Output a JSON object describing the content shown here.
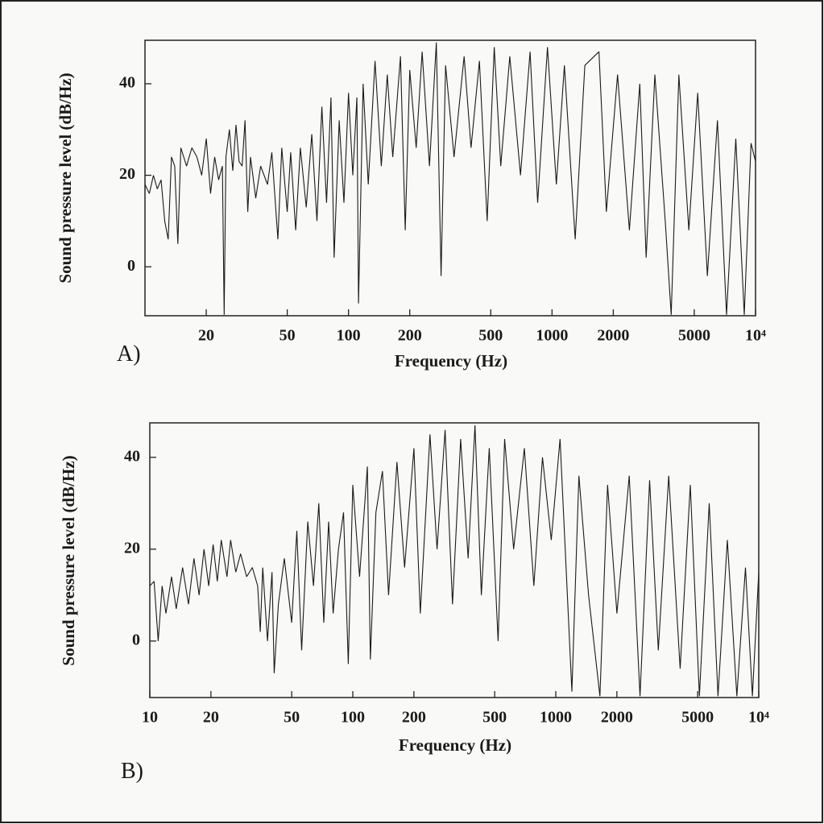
{
  "chart_data": [
    {
      "type": "line",
      "panel_label": "A)",
      "x_label": "Frequency (Hz)",
      "y_label": "Sound pressure level (dB/Hz)",
      "log_x": true,
      "color": "#1a1a1a",
      "xlim": [
        10,
        10000
      ],
      "ylim": [
        -10.7,
        49.5
      ],
      "xticks": [
        20,
        50,
        100,
        200,
        500,
        1000,
        2000,
        5000,
        {
          "value": 10000,
          "label": "10⁴"
        }
      ],
      "yticks": [
        0,
        20,
        40
      ],
      "x": [
        10,
        10.5,
        11,
        11.5,
        12,
        12.5,
        13,
        13.5,
        14,
        14.5,
        15,
        16,
        17,
        18,
        19,
        20,
        21,
        22,
        23,
        24,
        24.5,
        25,
        26,
        27,
        28,
        29,
        30,
        31,
        32,
        33,
        35,
        37,
        40,
        42,
        45,
        47,
        50,
        52,
        55,
        58,
        62,
        66,
        70,
        74,
        78,
        82,
        85,
        90,
        95,
        100,
        105,
        110,
        112,
        118,
        125,
        135,
        145,
        155,
        165,
        180,
        190,
        200,
        215,
        230,
        250,
        270,
        285,
        300,
        330,
        370,
        400,
        440,
        480,
        520,
        560,
        620,
        700,
        780,
        850,
        950,
        1050,
        1150,
        1300,
        1450,
        1700,
        1850,
        2100,
        2400,
        2700,
        2900,
        3200,
        3600,
        3850,
        4200,
        4700,
        5200,
        5800,
        6500,
        7200,
        8000,
        8800,
        9500,
        10000
      ],
      "values": [
        18,
        16,
        20,
        17,
        19,
        10,
        6,
        24,
        22,
        5,
        26,
        22,
        26,
        24,
        20,
        28,
        16,
        24,
        19,
        22,
        -10.5,
        24,
        30,
        21,
        31,
        23,
        22,
        32,
        12,
        24,
        15,
        22,
        18,
        25,
        6,
        26,
        12,
        25,
        8,
        26,
        13,
        29,
        10,
        35,
        14,
        37,
        2,
        32,
        14,
        38,
        20,
        37,
        -8,
        40,
        18,
        45,
        22,
        42,
        24,
        46,
        8,
        43,
        26,
        47,
        22,
        49,
        -2,
        44,
        24,
        46,
        26,
        45,
        10,
        48,
        22,
        46,
        20,
        47,
        14,
        48,
        18,
        44,
        6,
        44,
        47,
        12,
        42,
        8,
        40,
        2,
        42,
        10,
        -10.5,
        42,
        8,
        38,
        -2,
        32,
        -10.5,
        28,
        -10.5,
        27,
        23
      ]
    },
    {
      "type": "line",
      "panel_label": "B)",
      "x_label": "Frequency (Hz)",
      "y_label": "Sound pressure level (dB/Hz)",
      "log_x": true,
      "color": "#1a1a1a",
      "xlim": [
        10,
        10000
      ],
      "ylim": [
        -12.3,
        47.5
      ],
      "xticks": [
        10,
        20,
        50,
        100,
        200,
        500,
        1000,
        2000,
        5000,
        {
          "value": 10000,
          "label": "10⁴"
        }
      ],
      "yticks": [
        0,
        20,
        40
      ],
      "x": [
        10,
        10.5,
        11,
        11.5,
        12,
        12.8,
        13.5,
        14.5,
        15.5,
        16.5,
        17.5,
        18.5,
        19.5,
        20.5,
        21.5,
        22.5,
        24,
        25,
        26.5,
        28,
        30,
        32,
        34,
        35,
        36,
        38,
        40,
        41,
        43,
        46,
        50,
        53,
        56,
        60,
        64,
        68,
        72,
        76,
        80,
        85,
        90,
        95,
        100,
        108,
        118,
        122,
        130,
        140,
        150,
        165,
        180,
        200,
        215,
        240,
        260,
        285,
        310,
        340,
        370,
        400,
        430,
        470,
        520,
        560,
        620,
        700,
        780,
        860,
        950,
        1050,
        1200,
        1300,
        1450,
        1650,
        1800,
        2000,
        2300,
        2600,
        2900,
        3200,
        3600,
        4100,
        4600,
        5100,
        5700,
        6300,
        7000,
        7800,
        8600,
        9300,
        10000
      ],
      "values": [
        12,
        13,
        0,
        12,
        6,
        14,
        7,
        16,
        8,
        18,
        10,
        20,
        12,
        21,
        13,
        22,
        14,
        22,
        15,
        19,
        14,
        16,
        12,
        2,
        16,
        0,
        15,
        -7,
        8,
        18,
        4,
        24,
        -2,
        26,
        12,
        30,
        4,
        26,
        6,
        20,
        28,
        -5,
        34,
        14,
        38,
        -4,
        28,
        37,
        10,
        39,
        16,
        42,
        6,
        45,
        20,
        46,
        8,
        44,
        18,
        47,
        10,
        42,
        0,
        44,
        20,
        42,
        12,
        40,
        22,
        44,
        -11,
        36,
        10,
        -12,
        34,
        6,
        36,
        -12,
        35,
        -2,
        36,
        -6,
        34,
        -12,
        30,
        -12,
        22,
        -12,
        16,
        -12,
        15
      ]
    }
  ]
}
